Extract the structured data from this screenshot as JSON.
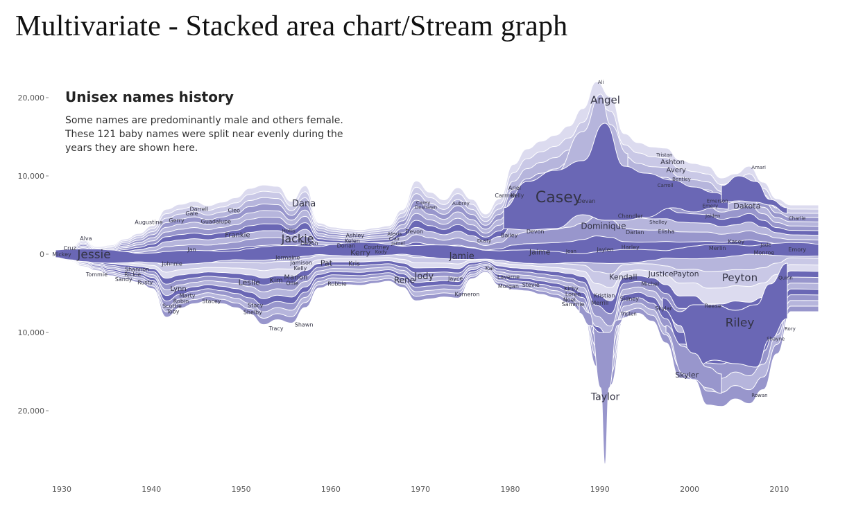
{
  "slide_title": "Multivariate - Stacked area chart/Stream graph",
  "chart_data": {
    "type": "area",
    "title": "Unisex names history",
    "subtitle_lines": [
      "Some names are predominantly male and others female.",
      "These 121 baby names were split near evenly during the",
      "years they are shown here."
    ],
    "x_ticks": [
      "1930",
      "1940",
      "1950",
      "1960",
      "1970",
      "1980",
      "1990",
      "2000",
      "2010"
    ],
    "y_ticks": [
      "20,000",
      "10,000",
      "0",
      "10,000",
      "20,000"
    ],
    "x_range": [
      1926,
      2014
    ],
    "y_range": [
      -28000,
      22000
    ],
    "series_colors": [
      "#6a67b5",
      "#9896cc",
      "#b6b5dc",
      "#c9c8e6",
      "#dcdbef"
    ],
    "series": [
      {
        "name": "Angel",
        "values": [
          {
            "x": 1984,
            "y": 3000
          },
          {
            "x": 1988,
            "y": 12000
          },
          {
            "x": 1990,
            "y": 21000
          },
          {
            "x": 1992,
            "y": 12000
          },
          {
            "x": 1994,
            "y": 8000
          }
        ]
      },
      {
        "name": "Casey",
        "values": [
          {
            "x": 1979,
            "y": 5000
          },
          {
            "x": 1983,
            "y": 8000
          },
          {
            "x": 1987,
            "y": 9500
          },
          {
            "x": 1990,
            "y": 10000
          },
          {
            "x": 1994,
            "y": 7000
          },
          {
            "x": 2000,
            "y": 5000
          },
          {
            "x": 2005,
            "y": 3000
          }
        ]
      },
      {
        "name": "Taylor",
        "values": [
          {
            "x": 1988,
            "y": -3000
          },
          {
            "x": 1990,
            "y": -27000
          },
          {
            "x": 1991,
            "y": -8000
          }
        ]
      },
      {
        "name": "Riley",
        "values": [
          {
            "x": 2000,
            "y": -4000
          },
          {
            "x": 2004,
            "y": -10000
          },
          {
            "x": 2008,
            "y": -17000
          },
          {
            "x": 2010,
            "y": -8000
          }
        ]
      },
      {
        "name": "Jessie",
        "values": [
          {
            "x": 1929,
            "y": 0
          },
          {
            "x": 1932,
            "y": 1500
          },
          {
            "x": 1935,
            "y": 800
          },
          {
            "x": 1938,
            "y": 200
          }
        ]
      }
    ],
    "labels": [
      {
        "text": "Jessie",
        "x": 1933.6,
        "y": 0,
        "size": 17
      },
      {
        "text": "Alva",
        "x": 1932.7,
        "y": 2000,
        "size": 8
      },
      {
        "text": "Cruz",
        "x": 1930.9,
        "y": 800,
        "size": 8
      },
      {
        "text": "Mickey",
        "x": 1930.0,
        "y": 0,
        "size": 8
      },
      {
        "text": "Tommie",
        "x": 1933.9,
        "y": -2600,
        "size": 8
      },
      {
        "text": "Rickie",
        "x": 1937.9,
        "y": -2600,
        "size": 8
      },
      {
        "text": "Shannon",
        "x": 1938.4,
        "y": -1900,
        "size": 8
      },
      {
        "text": "Sandy",
        "x": 1936.9,
        "y": -3200,
        "size": 8
      },
      {
        "text": "Rusty",
        "x": 1939.3,
        "y": -3600,
        "size": 8
      },
      {
        "text": "Johnnie",
        "x": 1942.3,
        "y": -1200,
        "size": 8
      },
      {
        "text": "Augustine",
        "x": 1939.7,
        "y": 4100,
        "size": 8
      },
      {
        "text": "Gerry",
        "x": 1942.8,
        "y": 4300,
        "size": 8
      },
      {
        "text": "Darrell",
        "x": 1945.3,
        "y": 5800,
        "size": 8
      },
      {
        "text": "Gale",
        "x": 1944.5,
        "y": 5200,
        "size": 8
      },
      {
        "text": "Guadalupe",
        "x": 1947.2,
        "y": 4200,
        "size": 8
      },
      {
        "text": "Cleo",
        "x": 1949.2,
        "y": 5600,
        "size": 8
      },
      {
        "text": "Jan",
        "x": 1944.5,
        "y": 600,
        "size": 8
      },
      {
        "text": "Lynn",
        "x": 1943.0,
        "y": -4400,
        "size": 10
      },
      {
        "text": "Marty",
        "x": 1944.0,
        "y": -5300,
        "size": 8
      },
      {
        "text": "Robin",
        "x": 1943.3,
        "y": -6000,
        "size": 8
      },
      {
        "text": "Stacey",
        "x": 1946.7,
        "y": -6000,
        "size": 8
      },
      {
        "text": "Scottie",
        "x": 1942.3,
        "y": -6600,
        "size": 8
      },
      {
        "text": "Toby",
        "x": 1942.4,
        "y": -7300,
        "size": 8
      },
      {
        "text": "Frankie",
        "x": 1949.6,
        "y": 2500,
        "size": 10
      },
      {
        "text": "Dana",
        "x": 1957.0,
        "y": 6500,
        "size": 13
      },
      {
        "text": "Jackie",
        "x": 1956.3,
        "y": 2000,
        "size": 16
      },
      {
        "text": "Hollis",
        "x": 1955.3,
        "y": 3000,
        "size": 7
      },
      {
        "text": "Devon",
        "x": 1957.6,
        "y": 1400,
        "size": 8
      },
      {
        "text": "Jermaine",
        "x": 1955.2,
        "y": -400,
        "size": 8
      },
      {
        "text": "Jamison",
        "x": 1956.7,
        "y": -1100,
        "size": 8
      },
      {
        "text": "Kelly",
        "x": 1956.6,
        "y": -1800,
        "size": 8
      },
      {
        "text": "Marion",
        "x": 1956.1,
        "y": -2900,
        "size": 10
      },
      {
        "text": "Kim",
        "x": 1953.9,
        "y": -3300,
        "size": 10
      },
      {
        "text": "Ollie",
        "x": 1955.7,
        "y": -3700,
        "size": 8
      },
      {
        "text": "Leslie",
        "x": 1950.9,
        "y": -3600,
        "size": 11
      },
      {
        "text": "Pat",
        "x": 1959.5,
        "y": -1100,
        "size": 11
      },
      {
        "text": "Stacy",
        "x": 1951.6,
        "y": -6500,
        "size": 8
      },
      {
        "text": "Shelby",
        "x": 1951.3,
        "y": -7400,
        "size": 8
      },
      {
        "text": "Tracy",
        "x": 1953.9,
        "y": -9500,
        "size": 8
      },
      {
        "text": "Shawn",
        "x": 1957.0,
        "y": -9000,
        "size": 8
      },
      {
        "text": "Robbie",
        "x": 1960.7,
        "y": -3800,
        "size": 8
      },
      {
        "text": "Ashley",
        "x": 1962.7,
        "y": 2400,
        "size": 8
      },
      {
        "text": "Kelen",
        "x": 1962.4,
        "y": 1700,
        "size": 8
      },
      {
        "text": "Dorian",
        "x": 1961.7,
        "y": 1100,
        "size": 8
      },
      {
        "text": "Kerry",
        "x": 1963.3,
        "y": 200,
        "size": 11
      },
      {
        "text": "Courtney",
        "x": 1965.1,
        "y": 900,
        "size": 8
      },
      {
        "text": "Alexis",
        "x": 1967.1,
        "y": 2600,
        "size": 7
      },
      {
        "text": "Clair",
        "x": 1967.1,
        "y": 2000,
        "size": 7
      },
      {
        "text": "Jamel",
        "x": 1967.5,
        "y": 1400,
        "size": 7
      },
      {
        "text": "Kody",
        "x": 1965.6,
        "y": 300,
        "size": 7
      },
      {
        "text": "Devon",
        "x": 1969.3,
        "y": 2900,
        "size": 8
      },
      {
        "text": "Kris",
        "x": 1962.6,
        "y": -1200,
        "size": 9
      },
      {
        "text": "Rene",
        "x": 1968.2,
        "y": -3300,
        "size": 12
      },
      {
        "text": "Jody",
        "x": 1970.4,
        "y": -2800,
        "size": 13
      },
      {
        "text": "Jayce",
        "x": 1973.9,
        "y": -3100,
        "size": 8
      },
      {
        "text": "Jamie",
        "x": 1974.6,
        "y": -200,
        "size": 13
      },
      {
        "text": "Kameron",
        "x": 1975.2,
        "y": -5100,
        "size": 8
      },
      {
        "text": "Carey",
        "x": 1970.3,
        "y": 6600,
        "size": 7
      },
      {
        "text": "Deshawn",
        "x": 1970.6,
        "y": 6000,
        "size": 7
      },
      {
        "text": "Aubrey",
        "x": 1974.5,
        "y": 6500,
        "size": 7
      },
      {
        "text": "Dusty",
        "x": 1977.1,
        "y": 1700,
        "size": 7
      },
      {
        "text": "Kai",
        "x": 1977.7,
        "y": -1800,
        "size": 8
      },
      {
        "text": "Laverne",
        "x": 1979.8,
        "y": -2900,
        "size": 8
      },
      {
        "text": "Morgan",
        "x": 1979.8,
        "y": -4100,
        "size": 8
      },
      {
        "text": "Stevie",
        "x": 1982.3,
        "y": -3900,
        "size": 8
      },
      {
        "text": "Ariel",
        "x": 1980.5,
        "y": 8500,
        "size": 8
      },
      {
        "text": "Carmen",
        "x": 1979.5,
        "y": 7500,
        "size": 8
      },
      {
        "text": "Kelly",
        "x": 1980.8,
        "y": 7500,
        "size": 8
      },
      {
        "text": "Bailey",
        "x": 1979.9,
        "y": 2400,
        "size": 8
      },
      {
        "text": "Devon",
        "x": 1982.8,
        "y": 2900,
        "size": 8
      },
      {
        "text": "Casey",
        "x": 1985.4,
        "y": 7300,
        "size": 22
      },
      {
        "text": "Devan",
        "x": 1988.5,
        "y": 6800,
        "size": 8
      },
      {
        "text": "Angel",
        "x": 1990.6,
        "y": 19700,
        "size": 15
      },
      {
        "text": "Ali",
        "x": 1990.1,
        "y": 22000,
        "size": 7
      },
      {
        "text": "Jaime",
        "x": 1983.3,
        "y": 300,
        "size": 11
      },
      {
        "text": "Jean",
        "x": 1986.8,
        "y": 400,
        "size": 7
      },
      {
        "text": "Jaylen",
        "x": 1990.6,
        "y": 600,
        "size": 8
      },
      {
        "text": "Harley",
        "x": 1993.4,
        "y": 900,
        "size": 8
      },
      {
        "text": "Dominique",
        "x": 1990.4,
        "y": 3600,
        "size": 12
      },
      {
        "text": "Chandler",
        "x": 1993.4,
        "y": 4900,
        "size": 8
      },
      {
        "text": "Darian",
        "x": 1993.9,
        "y": 2800,
        "size": 8
      },
      {
        "text": "Shelley",
        "x": 1996.5,
        "y": 4100,
        "size": 7
      },
      {
        "text": "Elisha",
        "x": 1997.4,
        "y": 2900,
        "size": 8
      },
      {
        "text": "Kirby",
        "x": 1986.8,
        "y": -4400,
        "size": 8
      },
      {
        "text": "Loren",
        "x": 1987.0,
        "y": -5100,
        "size": 8
      },
      {
        "text": "Noel",
        "x": 1986.6,
        "y": -5800,
        "size": 8
      },
      {
        "text": "Sammie",
        "x": 1987.0,
        "y": -6400,
        "size": 8
      },
      {
        "text": "Kristian",
        "x": 1990.5,
        "y": -5300,
        "size": 8
      },
      {
        "text": "Merrill",
        "x": 1990.0,
        "y": -6200,
        "size": 8
      },
      {
        "text": "Sidney",
        "x": 1993.3,
        "y": -5700,
        "size": 8
      },
      {
        "text": "Tristen",
        "x": 1993.2,
        "y": -7600,
        "size": 7
      },
      {
        "text": "Kendall",
        "x": 1992.6,
        "y": -2900,
        "size": 11
      },
      {
        "text": "Justice",
        "x": 1996.8,
        "y": -2500,
        "size": 11
      },
      {
        "text": "Michel",
        "x": 1995.6,
        "y": -3800,
        "size": 8
      },
      {
        "text": "Payton",
        "x": 1999.6,
        "y": -2500,
        "size": 11
      },
      {
        "text": "Skylar",
        "x": 1997.1,
        "y": -6900,
        "size": 8
      },
      {
        "text": "Tristan",
        "x": 1997.2,
        "y": 12700,
        "size": 7
      },
      {
        "text": "Ashton",
        "x": 1998.1,
        "y": 11800,
        "size": 10
      },
      {
        "text": "Avery",
        "x": 1998.5,
        "y": 10800,
        "size": 10
      },
      {
        "text": "Bentley",
        "x": 1999.1,
        "y": 9600,
        "size": 7
      },
      {
        "text": "Carroll",
        "x": 1997.3,
        "y": 8800,
        "size": 7
      },
      {
        "text": "Emerson",
        "x": 2003.1,
        "y": 6800,
        "size": 7
      },
      {
        "text": "Emery",
        "x": 2002.3,
        "y": 6200,
        "size": 7
      },
      {
        "text": "Jaiden",
        "x": 2002.6,
        "y": 4900,
        "size": 7
      },
      {
        "text": "Dakota",
        "x": 2006.4,
        "y": 6200,
        "size": 11
      },
      {
        "text": "Amari",
        "x": 2007.7,
        "y": 11100,
        "size": 7
      },
      {
        "text": "Charlie",
        "x": 2012.0,
        "y": 4600,
        "size": 7
      },
      {
        "text": "Kasey",
        "x": 2005.2,
        "y": 1600,
        "size": 8
      },
      {
        "text": "Merlin",
        "x": 2003.1,
        "y": 800,
        "size": 8
      },
      {
        "text": "Jade",
        "x": 2008.5,
        "y": 1200,
        "size": 7
      },
      {
        "text": "Monroe",
        "x": 2008.3,
        "y": 200,
        "size": 8
      },
      {
        "text": "Emory",
        "x": 2012.0,
        "y": 600,
        "size": 8
      },
      {
        "text": "Peyton",
        "x": 2005.6,
        "y": -3000,
        "size": 15
      },
      {
        "text": "Quinn",
        "x": 2010.7,
        "y": -3000,
        "size": 7
      },
      {
        "text": "Reese",
        "x": 2002.6,
        "y": -6600,
        "size": 8
      },
      {
        "text": "Riley",
        "x": 2005.6,
        "y": -8700,
        "size": 17
      },
      {
        "text": "Shayne",
        "x": 2009.6,
        "y": -10800,
        "size": 7
      },
      {
        "text": "Rory",
        "x": 2011.2,
        "y": -9500,
        "size": 7
      },
      {
        "text": "Skyler",
        "x": 1999.7,
        "y": -15400,
        "size": 11
      },
      {
        "text": "Rowan",
        "x": 2007.8,
        "y": -18000,
        "size": 7
      },
      {
        "text": "Taylor",
        "x": 1990.6,
        "y": -18200,
        "size": 14
      }
    ]
  }
}
